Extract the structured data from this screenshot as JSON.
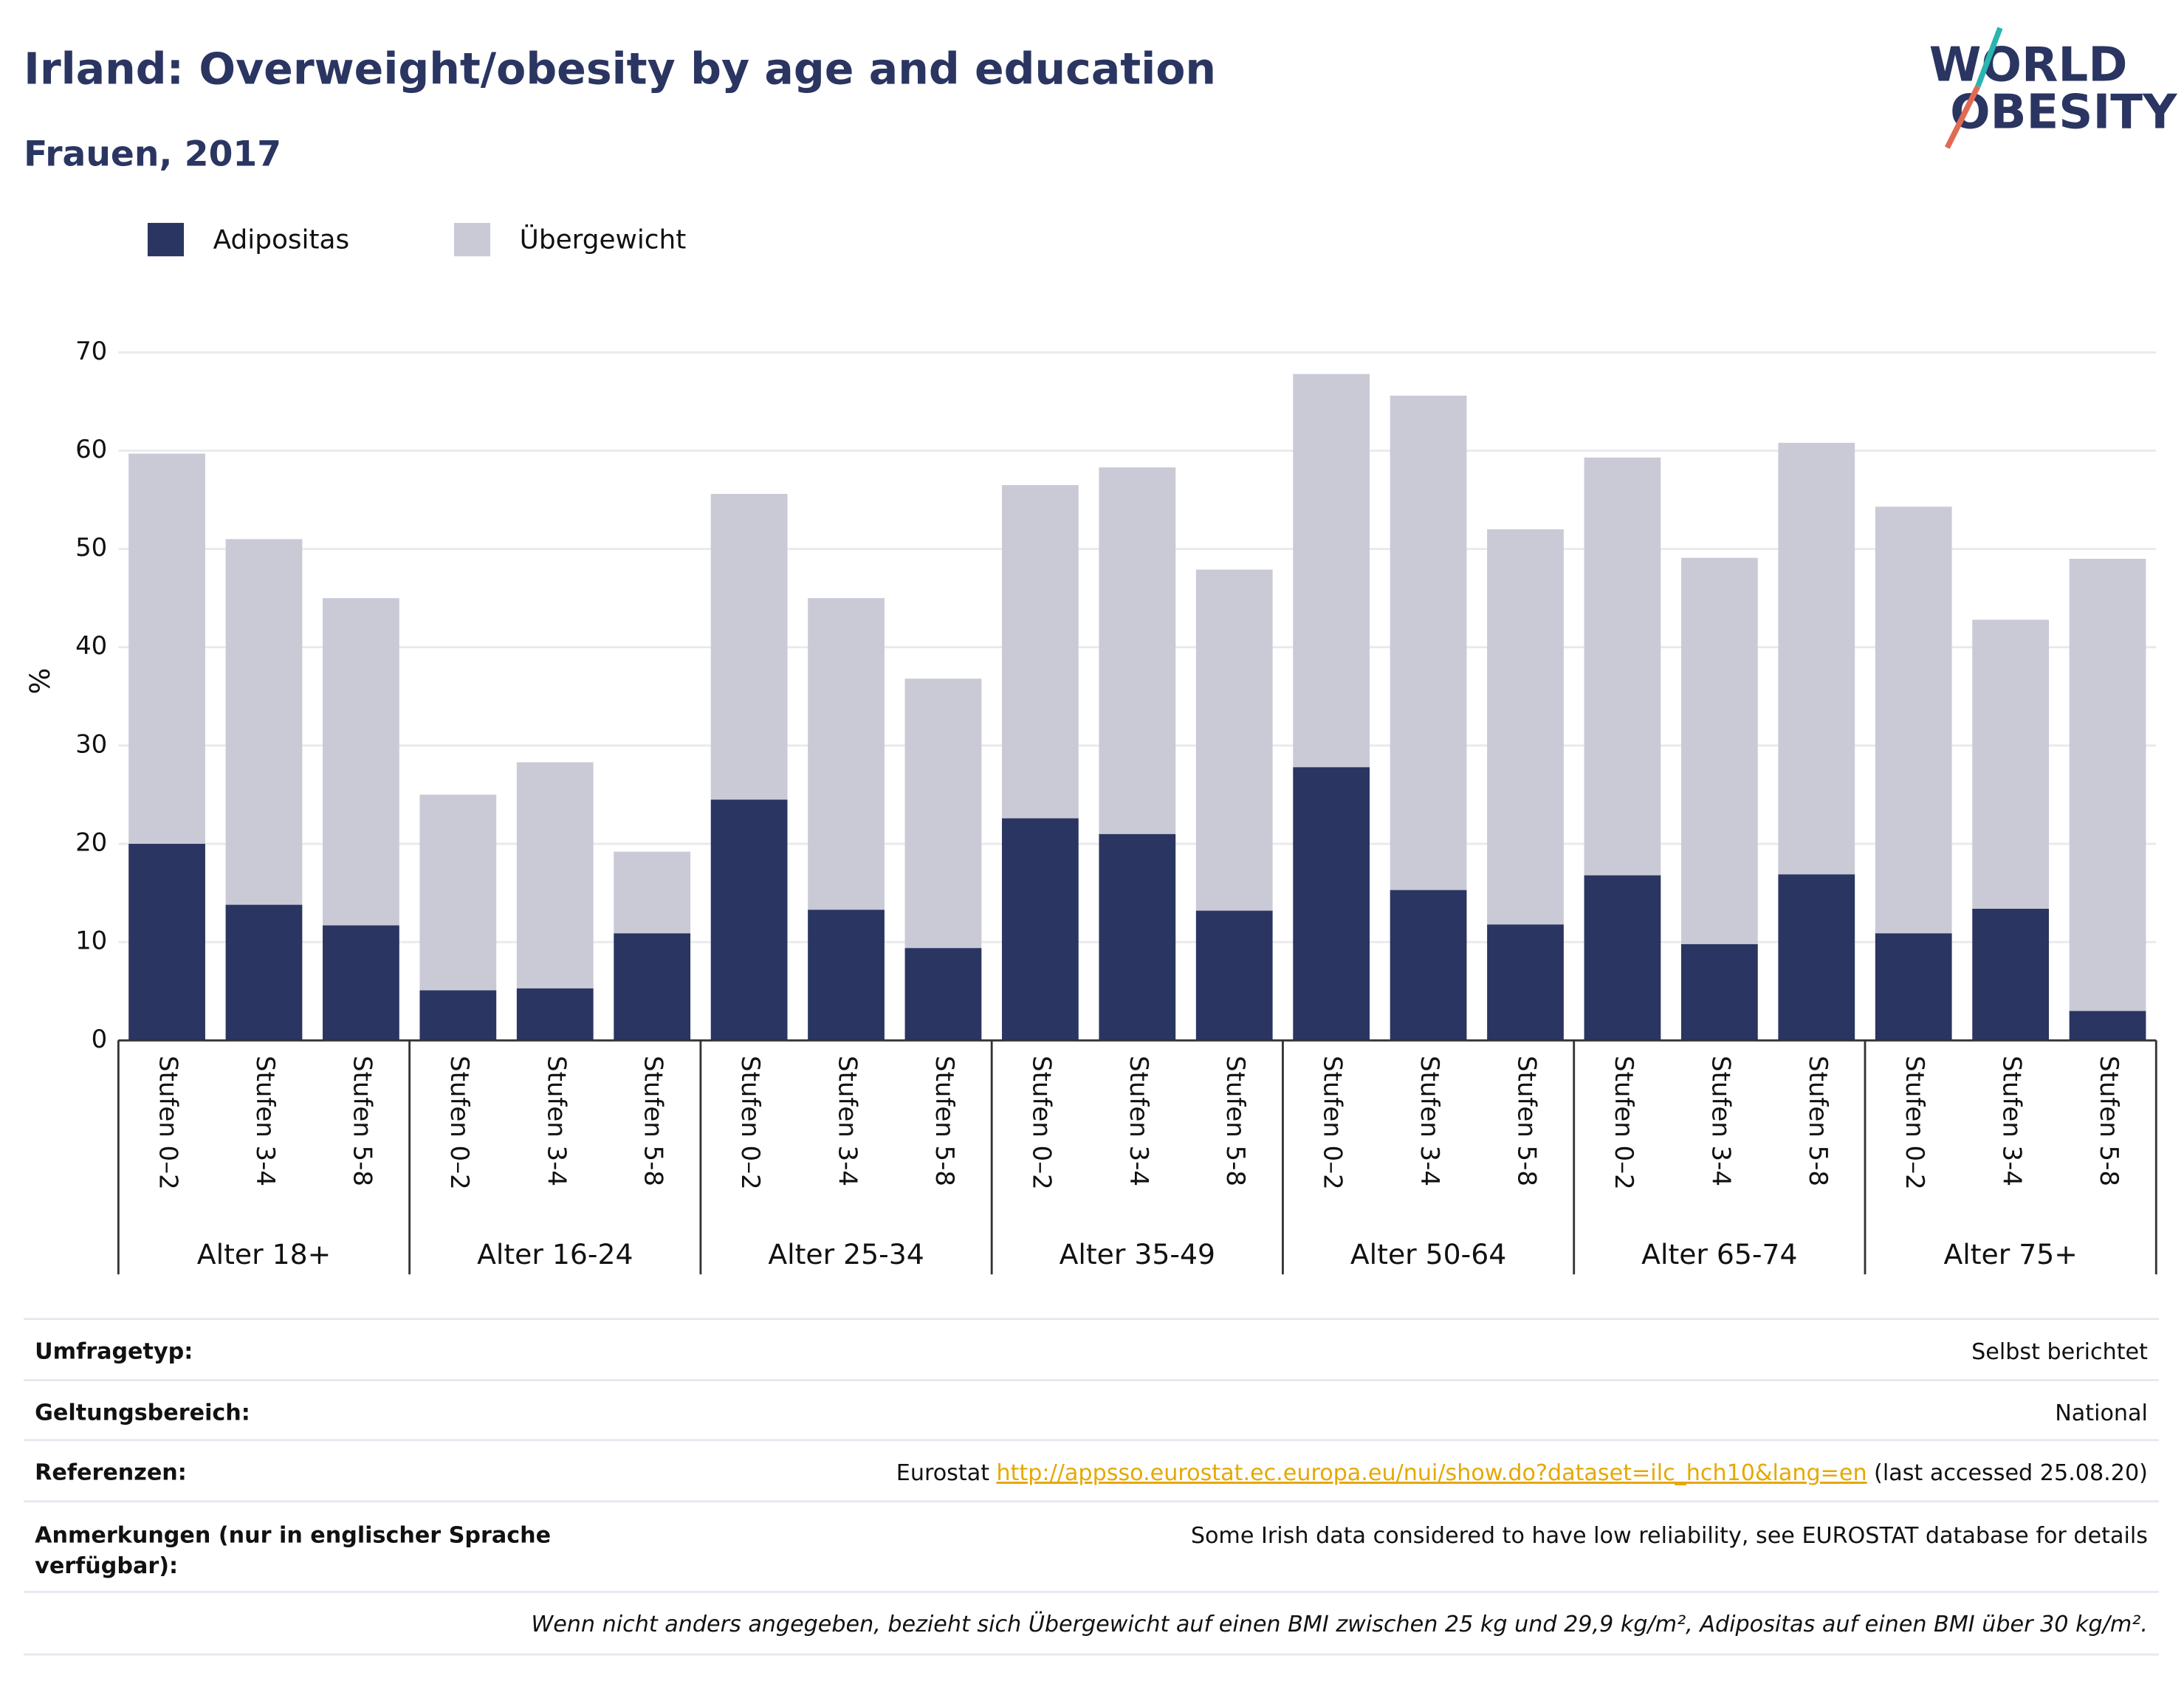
{
  "chart_data": {
    "type": "stacked_bar",
    "title": "Irland: Overweight/obesity by age and education",
    "subtitle": "Frauen, 2017",
    "y_label": "%",
    "categories": [
      "Stufen 0–2",
      "Stufen 3-4",
      "Stufen 5-8",
      "Stufen 0–2",
      "Stufen 3-4",
      "Stufen 5-8",
      "Stufen 0–2",
      "Stufen 3-4",
      "Stufen 5-8",
      "Stufen 0–2",
      "Stufen 3-4",
      "Stufen 5-8",
      "Stufen 0–2",
      "Stufen 3-4",
      "Stufen 5-8",
      "Stufen 0–2",
      "Stufen 3-4",
      "Stufen 5-8",
      "Stufen 0–2",
      "Stufen 3-4",
      "Stufen 5-8"
    ],
    "groups": [
      "Alter 18+",
      "Alter 16-24",
      "Alter 25-34",
      "Alter 35-49",
      "Alter 50-64",
      "Alter 65-74",
      "Alter 75+"
    ],
    "series": [
      {
        "name": "Adipositas",
        "color": "#2a3561",
        "values": [
          20,
          13.8,
          11.7,
          5.1,
          5.3,
          10.9,
          24.5,
          13.3,
          9.4,
          22.6,
          21,
          13.2,
          27.8,
          15.3,
          11.8,
          16.8,
          9.8,
          16.9,
          10.9,
          13.4,
          3.0
        ]
      },
      {
        "name": "Übergewicht",
        "color": "#c9cad6",
        "values": [
          39.7,
          37.2,
          33.3,
          19.9,
          23,
          8.3,
          31.1,
          31.7,
          27.4,
          33.9,
          37.3,
          34.7,
          40,
          50.3,
          40.2,
          42.5,
          39.3,
          43.9,
          43.4,
          29.4,
          46
        ]
      }
    ],
    "ylim": [
      0,
      70
    ],
    "yticks": [
      0,
      10,
      20,
      30,
      40,
      50,
      60,
      70
    ],
    "grid": true,
    "legend": "top-left"
  },
  "logo": {
    "line1": "WORLD",
    "line2": "OBESITY"
  },
  "footer": {
    "rows": [
      {
        "label": [
          "Umfragetyp:"
        ],
        "value": [
          "Selbst berichtet"
        ]
      },
      {
        "label": [
          "Geltungsbereich:"
        ],
        "value": [
          "National"
        ]
      },
      {
        "label": [
          "Referenzen:"
        ],
        "value": [
          "Eurostat",
          "http://appsso.eurostat.ec.europa.eu/nui/show.do?dataset=ilc_hch10&lang=en",
          "(last accessed 25.08.20)"
        ]
      },
      {
        "label": [
          "Anmerkungen (nur in englischer Sprache",
          "verfügbar):"
        ],
        "value": [
          "Some Irish data considered to have low reliability, see EUROSTAT database for details"
        ]
      }
    ],
    "note": "Wenn nicht anders angegeben, bezieht sich Übergewicht auf einen BMI zwischen 25 kg und 29,9 kg/m², Adipositas auf einen BMI über 30 kg/m²."
  }
}
